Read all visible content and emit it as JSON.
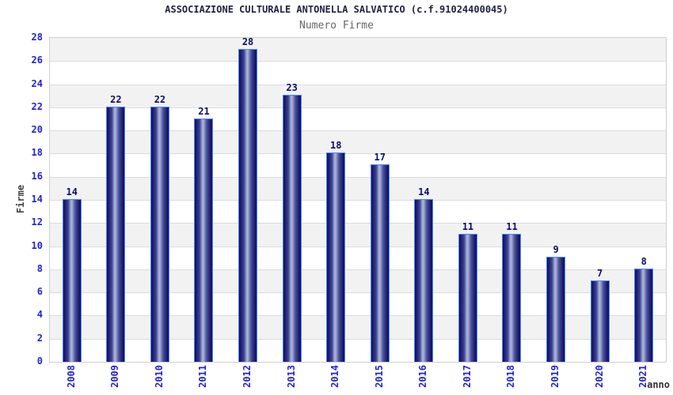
{
  "chart_data": {
    "type": "bar",
    "title": "ASSOCIAZIONE CULTURALE ANTONELLA SALVATICO (c.f.91024400045)",
    "subtitle": "Numero Firme",
    "xlabel": "anno",
    "ylabel": "Firme",
    "categories": [
      "2008",
      "2009",
      "2010",
      "2011",
      "2012",
      "2013",
      "2014",
      "2015",
      "2016",
      "2017",
      "2018",
      "2019",
      "2020",
      "2021"
    ],
    "values": [
      14,
      22,
      22,
      21,
      28,
      23,
      18,
      17,
      14,
      11,
      11,
      9,
      7,
      8
    ],
    "ylim": [
      0,
      28
    ],
    "ytick_step": 2,
    "yticks": [
      0,
      2,
      4,
      6,
      8,
      10,
      12,
      14,
      16,
      18,
      20,
      22,
      24,
      26,
      28
    ],
    "grid": "horizontal-bands-alternating",
    "legend": "none",
    "colors": {
      "bar_dark": "#15156d",
      "bar_mid": "#b4bcdc",
      "bar_border": "#4b86f7",
      "tick_label": "#2323cc",
      "value_label": "#0d0d66",
      "band_gray": "#f2f2f2",
      "title_color": "#222244",
      "subtitle_color": "#666666",
      "axis_title_color": "#444444"
    }
  }
}
